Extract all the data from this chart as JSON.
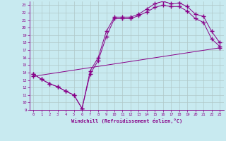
{
  "background_color": "#c8eaf0",
  "grid_color": "#b0c8c8",
  "line_color": "#880088",
  "marker": "+",
  "marker_size": 4,
  "marker_lw": 1.0,
  "xlim": [
    -0.5,
    23.5
  ],
  "ylim": [
    9,
    23.5
  ],
  "xticks": [
    0,
    1,
    2,
    3,
    4,
    5,
    6,
    7,
    8,
    9,
    10,
    11,
    12,
    13,
    14,
    15,
    16,
    17,
    18,
    19,
    20,
    21,
    22,
    23
  ],
  "yticks": [
    9,
    10,
    11,
    12,
    13,
    14,
    15,
    16,
    17,
    18,
    19,
    20,
    21,
    22,
    23
  ],
  "xlabel": "Windchill (Refroidissement éolien,°C)",
  "line1_x": [
    0,
    1,
    2,
    3,
    4,
    5,
    6,
    7,
    8,
    9,
    10,
    11,
    12,
    13,
    14,
    15,
    16,
    17,
    18,
    19,
    20,
    21,
    22,
    23
  ],
  "line1_y": [
    13.8,
    13.1,
    12.5,
    12.1,
    11.5,
    11.0,
    9.2,
    13.8,
    15.6,
    18.8,
    21.2,
    21.2,
    21.2,
    21.6,
    22.1,
    22.7,
    23.0,
    22.8,
    22.8,
    22.2,
    21.2,
    20.7,
    18.5,
    17.5
  ],
  "line2_x": [
    0,
    1,
    2,
    3,
    4,
    5,
    6,
    7,
    8,
    9,
    10,
    11,
    12,
    13,
    14,
    15,
    16,
    17,
    18,
    19,
    20,
    21,
    22,
    23
  ],
  "line2_y": [
    13.8,
    13.1,
    12.5,
    12.1,
    11.5,
    11.0,
    9.2,
    14.2,
    16.0,
    19.5,
    21.4,
    21.4,
    21.4,
    21.8,
    22.5,
    23.2,
    23.5,
    23.2,
    23.3,
    22.8,
    21.8,
    21.5,
    19.5,
    18.0
  ],
  "line3_x": [
    0,
    23
  ],
  "line3_y": [
    13.5,
    17.3
  ]
}
